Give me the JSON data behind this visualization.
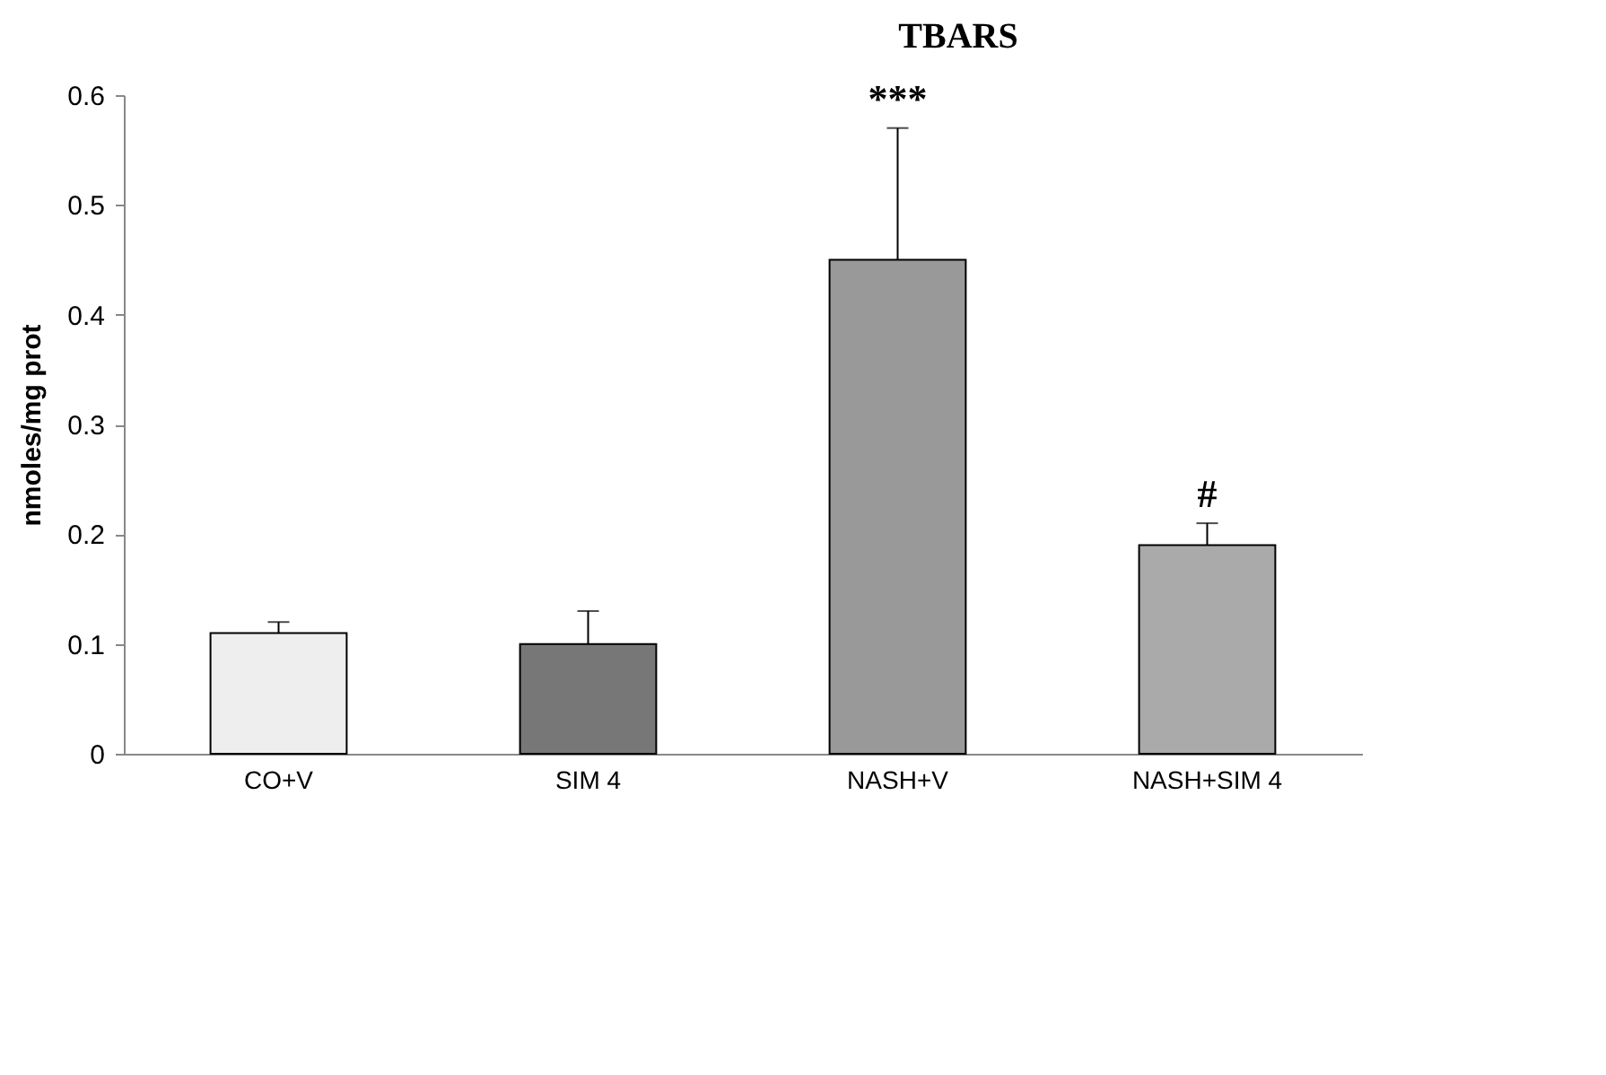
{
  "chart_data": {
    "type": "bar",
    "title": "TBARS",
    "ylabel": "nmoles/mg prot",
    "categories": [
      "CO+V",
      "SIM 4",
      "NASH+V",
      "NASH+SIM 4"
    ],
    "values": [
      0.11,
      0.1,
      0.45,
      0.19
    ],
    "colors": [
      "#eeeeee",
      "#777777",
      "#999999",
      "#aaaaaa"
    ],
    "errors": [
      [
        0.11,
        0.12
      ],
      [
        0.1,
        0.13
      ],
      [
        0.45,
        0.57
      ],
      [
        0.19,
        0.21
      ]
    ],
    "annotations": [
      {
        "text": "***",
        "x": "NASH+V",
        "y": 0.57
      },
      {
        "text": "#",
        "x": "NASH+SIM 4",
        "y": 0.21
      }
    ],
    "ylim": [
      0,
      0.6
    ],
    "yticks": [
      0,
      0.1,
      0.2,
      0.3,
      0.4,
      0.5,
      0.6
    ],
    "grid": false
  }
}
